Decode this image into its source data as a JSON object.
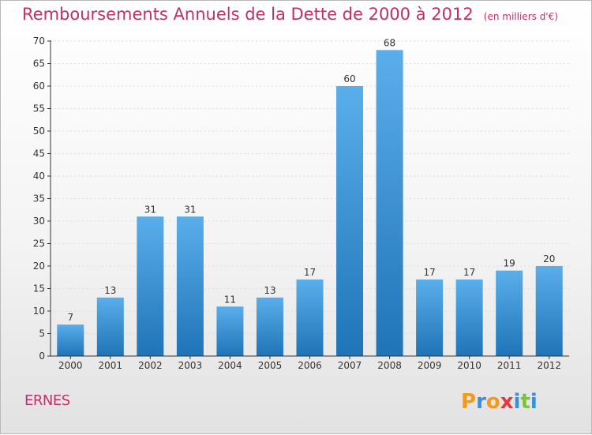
{
  "page": {
    "title": "Remboursements Annuels de la Dette de 2000 à 2012",
    "unit": "(en milliers d'€)",
    "commune": "ERNES",
    "logo": "Proxiti"
  },
  "colors": {
    "title": "#c0306a",
    "bar_top": "#5aaeea",
    "bar_bottom": "#1f74b8",
    "axis": "#333333",
    "grid": "#dddddd",
    "logo_letters": [
      "#f29a1a",
      "#3a8fd9",
      "#f29a1a",
      "#e2393f",
      "#3a8fd9",
      "#7cc242",
      "#3a8fd9"
    ]
  },
  "chart_data": {
    "type": "bar",
    "title": "Remboursements Annuels de la Dette de 2000 à 2012",
    "subtitle": "(en milliers d'€)",
    "categories": [
      "2000",
      "2001",
      "2002",
      "2003",
      "2004",
      "2005",
      "2006",
      "2007",
      "2008",
      "2009",
      "2010",
      "2011",
      "2012"
    ],
    "values": [
      7,
      13,
      31,
      31,
      11,
      13,
      17,
      60,
      68,
      17,
      17,
      19,
      20
    ],
    "ylim": [
      0,
      70
    ],
    "yticks": [
      0,
      5,
      10,
      15,
      20,
      25,
      30,
      35,
      40,
      45,
      50,
      55,
      60,
      65,
      70
    ],
    "grid": "horizontal dashed",
    "data_labels": true,
    "legend": "none"
  }
}
